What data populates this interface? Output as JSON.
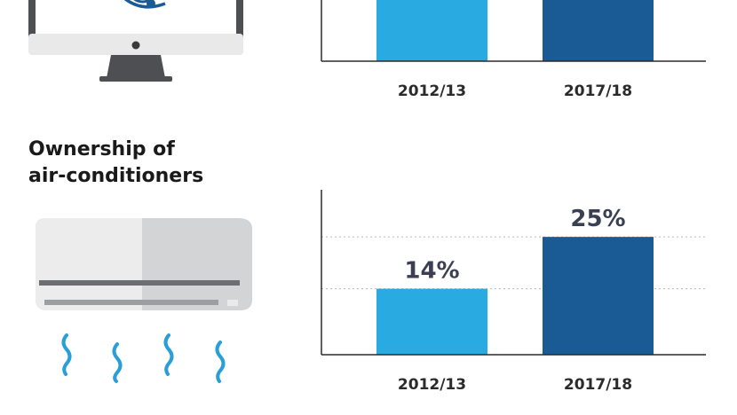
{
  "colors": {
    "bar_2012": "#29abe2",
    "bar_2017": "#1a5b96",
    "axis": "#2b2b2b",
    "grid": "#b8b8b8",
    "value_text": "#3a3f52",
    "drop": "#2a9fd6"
  },
  "icons": [
    "monitor-icon",
    "air-conditioner-icon",
    "airflow-icon"
  ],
  "sections": {
    "aircon": {
      "title_line1": "Ownership of",
      "title_line2": "air-conditioners"
    }
  },
  "chart_data": [
    {
      "type": "bar",
      "categories": [
        "2012/13",
        "2017/18"
      ],
      "values": [
        null,
        null
      ],
      "title": "",
      "xlabel": "",
      "ylabel": "",
      "grid": false,
      "note": "top of chart cropped; bar values not visible"
    },
    {
      "type": "bar",
      "categories": [
        "2012/13",
        "2017/18"
      ],
      "values": [
        14,
        25
      ],
      "value_labels": [
        "14%",
        "25%"
      ],
      "title": "Ownership of air-conditioners",
      "xlabel": "",
      "ylabel": "",
      "ylim": [
        0,
        35
      ],
      "grid": true
    }
  ]
}
